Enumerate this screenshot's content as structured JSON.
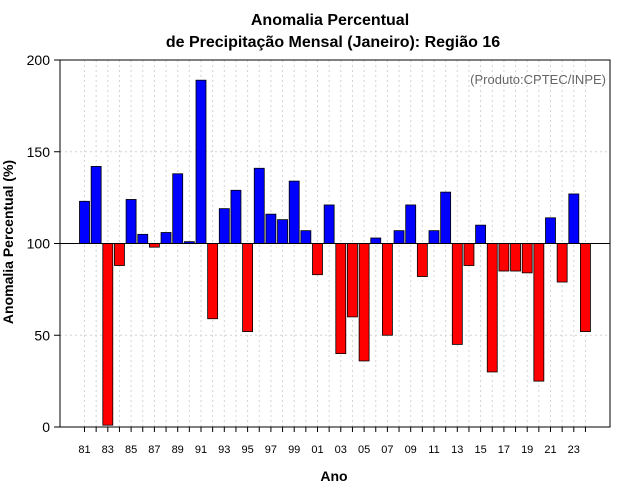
{
  "chart_data": {
    "type": "bar",
    "title": "Anomalia Percentual",
    "subtitle": "de Precipitação Mensal (Janeiro): Região 16",
    "xlabel": "Ano",
    "ylabel": "Anomalia Percentual (%)",
    "credit": "(Produto:CPTEC/INPE)",
    "ylim": [
      0,
      200
    ],
    "yticks": [
      0,
      50,
      100,
      150,
      200
    ],
    "baseline": 100,
    "grid": true,
    "x_tick_labels": [
      "81",
      "83",
      "85",
      "87",
      "89",
      "91",
      "93",
      "95",
      "97",
      "99",
      "01",
      "03",
      "05",
      "07",
      "09",
      "11",
      "13",
      "15",
      "17",
      "19",
      "21",
      "23"
    ],
    "categories": [
      "81",
      "82",
      "83",
      "84",
      "85",
      "86",
      "87",
      "88",
      "89",
      "90",
      "91",
      "92",
      "93",
      "94",
      "95",
      "96",
      "97",
      "98",
      "99",
      "00",
      "01",
      "02",
      "03",
      "04",
      "05",
      "06",
      "07",
      "08",
      "09",
      "10",
      "11",
      "12",
      "13",
      "14",
      "15",
      "16",
      "17",
      "18",
      "19",
      "20",
      "21",
      "22",
      "23",
      "24"
    ],
    "values": [
      123,
      142,
      1,
      88,
      124,
      105,
      98,
      106,
      138,
      101,
      189,
      59,
      119,
      129,
      52,
      141,
      116,
      113,
      134,
      107,
      83,
      121,
      40,
      60,
      36,
      103,
      50,
      107,
      121,
      82,
      107,
      128,
      45,
      88,
      110,
      30,
      85,
      85,
      84,
      25,
      114,
      79,
      127,
      52
    ],
    "colors": {
      "above": "#0000ff",
      "below": "#ff0000",
      "grid": "#d3d3d3",
      "frame": "#000000"
    }
  }
}
